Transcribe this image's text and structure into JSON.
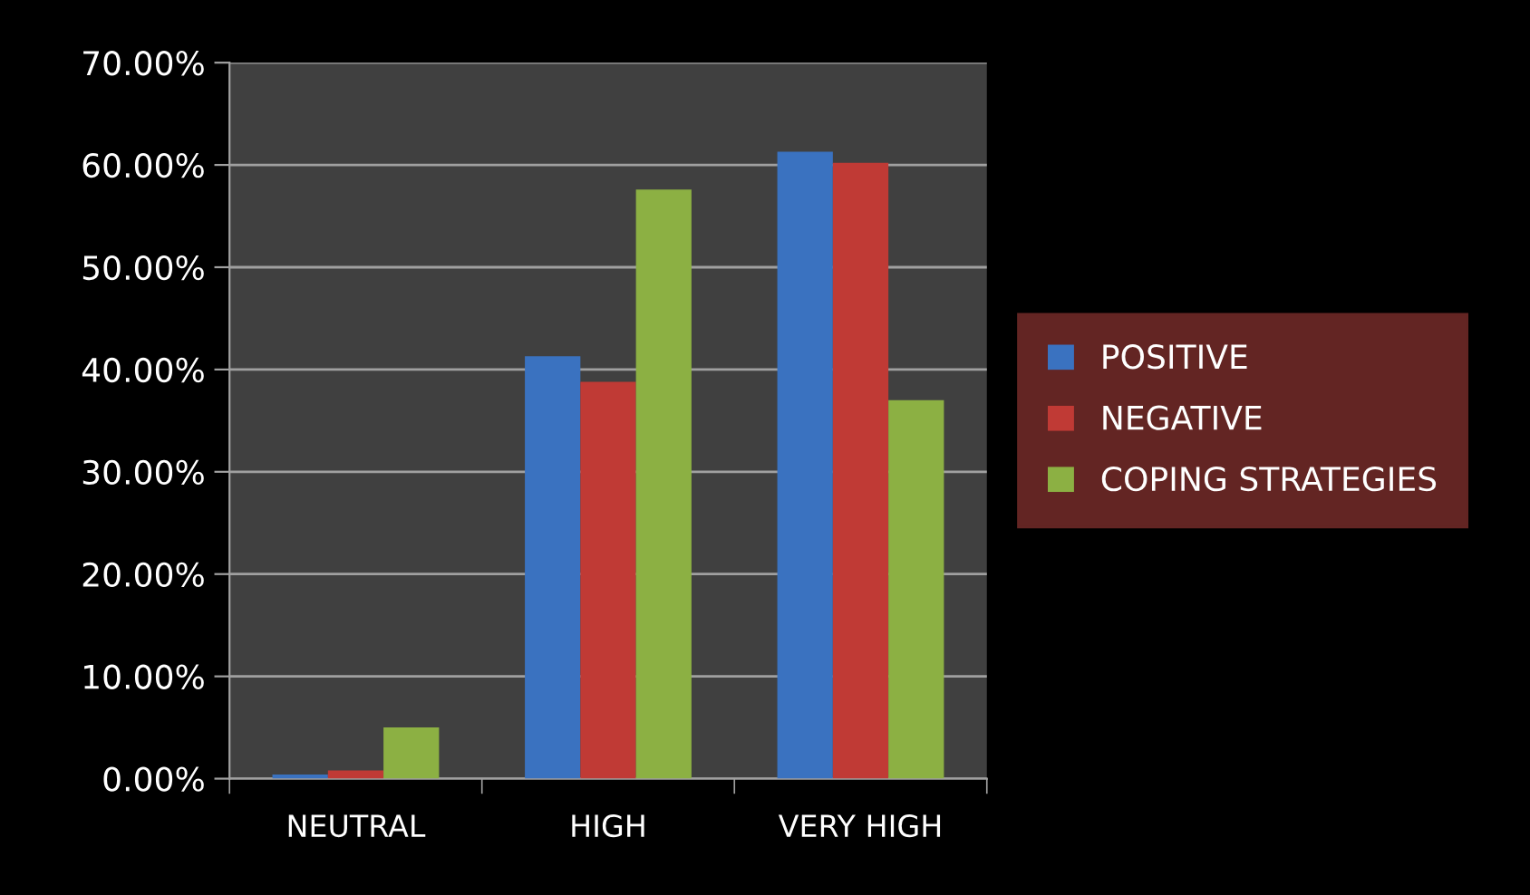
{
  "chart_data": {
    "type": "bar",
    "categories": [
      "NEUTRAL",
      "HIGH",
      "VERY HIGH"
    ],
    "series": [
      {
        "name": "POSITIVE",
        "color": "#3a72c0",
        "values": [
          0.4,
          41.3,
          61.3
        ]
      },
      {
        "name": "NEGATIVE",
        "color": "#c03a35",
        "values": [
          0.8,
          38.8,
          60.2
        ]
      },
      {
        "name": "COPING STRATEGIES",
        "color": "#8cb043",
        "values": [
          5.0,
          57.6,
          37.0
        ]
      }
    ],
    "ylim": [
      0,
      70
    ],
    "yticks": [
      {
        "value": 0,
        "label": "0.00%"
      },
      {
        "value": 10,
        "label": "10.00%"
      },
      {
        "value": 20,
        "label": "20.00%"
      },
      {
        "value": 30,
        "label": "30.00%"
      },
      {
        "value": 40,
        "label": "40.00%"
      },
      {
        "value": 50,
        "label": "50.00%"
      },
      {
        "value": 60,
        "label": "60.00%"
      },
      {
        "value": 70,
        "label": "70.00%"
      }
    ],
    "grid": "y",
    "legend": "right"
  }
}
